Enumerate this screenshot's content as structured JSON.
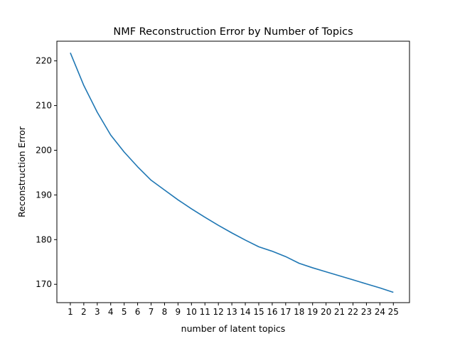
{
  "chart_data": {
    "type": "line",
    "title": "NMF Reconstruction Error by Number of Topics",
    "xlabel": "number of latent topics",
    "ylabel": "Reconstruction Error",
    "x": [
      1,
      2,
      3,
      4,
      5,
      6,
      7,
      8,
      9,
      10,
      11,
      12,
      13,
      14,
      15,
      16,
      17,
      18,
      19,
      20,
      21,
      22,
      23,
      24,
      25
    ],
    "xticks": [
      "1",
      "2",
      "3",
      "4",
      "5",
      "6",
      "7",
      "8",
      "9",
      "10",
      "11",
      "12",
      "13",
      "14",
      "15",
      "16",
      "17",
      "18",
      "19",
      "20",
      "21",
      "22",
      "23",
      "24",
      "25"
    ],
    "yticks": [
      "170",
      "180",
      "190",
      "200",
      "210",
      "220"
    ],
    "xlim": [
      0,
      26.2
    ],
    "ylim": [
      165.9,
      224.4
    ],
    "grid": false,
    "series": [
      {
        "color": "#1f77b4",
        "values": [
          221.8,
          214.5,
          208.5,
          203.4,
          199.6,
          196.3,
          193.3,
          191.1,
          188.9,
          186.9,
          185.0,
          183.2,
          181.5,
          179.9,
          178.4,
          177.4,
          176.2,
          174.7,
          173.7,
          172.8,
          171.9,
          171.0,
          170.1,
          169.2,
          168.2
        ]
      }
    ]
  }
}
